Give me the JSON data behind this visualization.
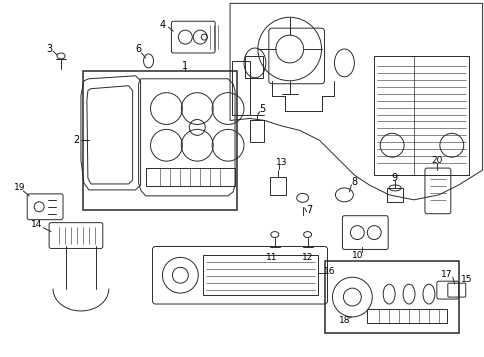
{
  "background_color": "#ffffff",
  "line_color": "#2a2a2a",
  "lw": 0.7,
  "fig_w": 4.85,
  "fig_h": 3.57,
  "dpi": 100
}
